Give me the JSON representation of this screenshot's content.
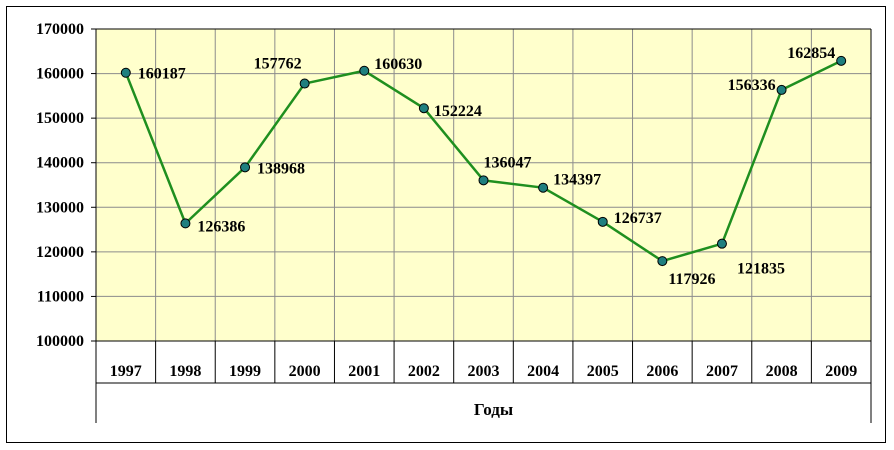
{
  "chart_data": {
    "type": "line",
    "title": "",
    "xlabel": "Годы",
    "ylabel": "",
    "categories": [
      "1997",
      "1998",
      "1999",
      "2000",
      "2001",
      "2002",
      "2003",
      "2004",
      "2005",
      "2006",
      "2007",
      "2008",
      "2009"
    ],
    "series": [
      {
        "values": [
          160187,
          126386,
          138968,
          157762,
          160630,
          152224,
          136047,
          134397,
          126737,
          117926,
          121835,
          156336,
          162854
        ],
        "color": "#1f8f1f",
        "marker_color": "#1f7f7f"
      }
    ],
    "ylim": [
      100000,
      170000
    ],
    "yticks": [
      100000,
      110000,
      120000,
      130000,
      140000,
      150000,
      160000,
      170000
    ],
    "grid": true,
    "legend": "none",
    "plot_background": "#ffffcc",
    "grid_color": "#8c8c8c",
    "data_labels": [
      "160187",
      "126386",
      "138968",
      "157762",
      "160630",
      "152224",
      "136047",
      "134397",
      "126737",
      "117926",
      "121835",
      "156336",
      "162854"
    ]
  }
}
